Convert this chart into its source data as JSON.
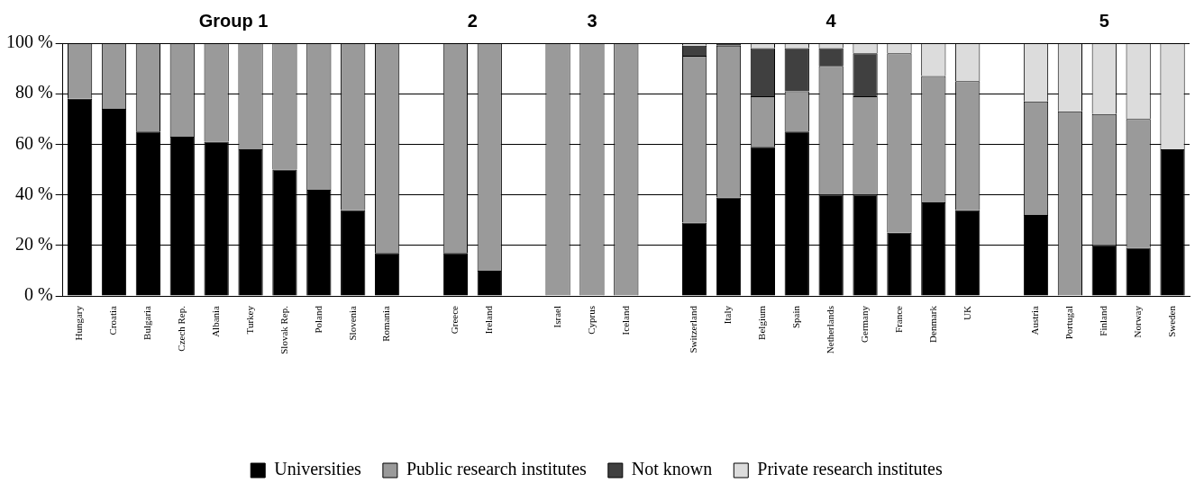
{
  "chart_data": {
    "type": "bar",
    "stacked": true,
    "categories": [
      "Hungary",
      "Croatia",
      "Bulgaria",
      "Czech Rep.",
      "Albania",
      "Turkey",
      "Slovak Rep.",
      "Poland",
      "Slovenia",
      "Romania",
      null,
      "Greece",
      "Ireland",
      null,
      "Israel",
      "Cyprus",
      "Iceland",
      null,
      "Switzerland",
      "Italy",
      "Belgium",
      "Spain",
      "Netherlands",
      "Germany",
      "France",
      "Denmark",
      "UK",
      null,
      "Austria",
      "Portugal",
      "Finland",
      "Norway",
      "Sweden"
    ],
    "series": [
      {
        "name": "Universities",
        "color": "#000000",
        "values": [
          78,
          74,
          65,
          63,
          61,
          58,
          50,
          42,
          34,
          17,
          null,
          17,
          10,
          null,
          0,
          0,
          0,
          null,
          29,
          39,
          59,
          65,
          40,
          40,
          25,
          37,
          34,
          null,
          32,
          0,
          20,
          19,
          58
        ]
      },
      {
        "name": "Public research institutes",
        "color": "#9a9a9a",
        "values": [
          22,
          26,
          35,
          37,
          39,
          42,
          50,
          58,
          66,
          83,
          null,
          83,
          90,
          null,
          100,
          100,
          100,
          null,
          66,
          60,
          20,
          16,
          51,
          39,
          71,
          50,
          51,
          null,
          45,
          73,
          52,
          51,
          0
        ]
      },
      {
        "name": "Not known",
        "color": "#404040",
        "values": [
          0,
          0,
          0,
          0,
          0,
          0,
          0,
          0,
          0,
          0,
          null,
          0,
          0,
          null,
          0,
          0,
          0,
          null,
          4,
          1,
          19,
          17,
          7,
          17,
          0,
          0,
          0,
          null,
          0,
          0,
          0,
          0,
          0
        ]
      },
      {
        "name": "Private research institutes",
        "color": "#dcdcdc",
        "values": [
          0,
          0,
          0,
          0,
          0,
          0,
          0,
          0,
          0,
          0,
          null,
          0,
          0,
          null,
          0,
          0,
          0,
          null,
          1,
          0,
          2,
          2,
          2,
          4,
          4,
          13,
          15,
          null,
          23,
          27,
          28,
          30,
          42
        ]
      }
    ],
    "ylim": [
      0,
      100
    ],
    "yticks": [
      {
        "value": 0,
        "label": "0 %"
      },
      {
        "value": 20,
        "label": "20 %"
      },
      {
        "value": 40,
        "label": "40 %"
      },
      {
        "value": 60,
        "label": "60 %"
      },
      {
        "value": 80,
        "label": "80 %"
      },
      {
        "value": 100,
        "label": "100 %"
      }
    ],
    "grid": "y",
    "legend": "bottom",
    "annotations": [
      "Group 1",
      "2",
      "3",
      "4",
      "5"
    ]
  }
}
